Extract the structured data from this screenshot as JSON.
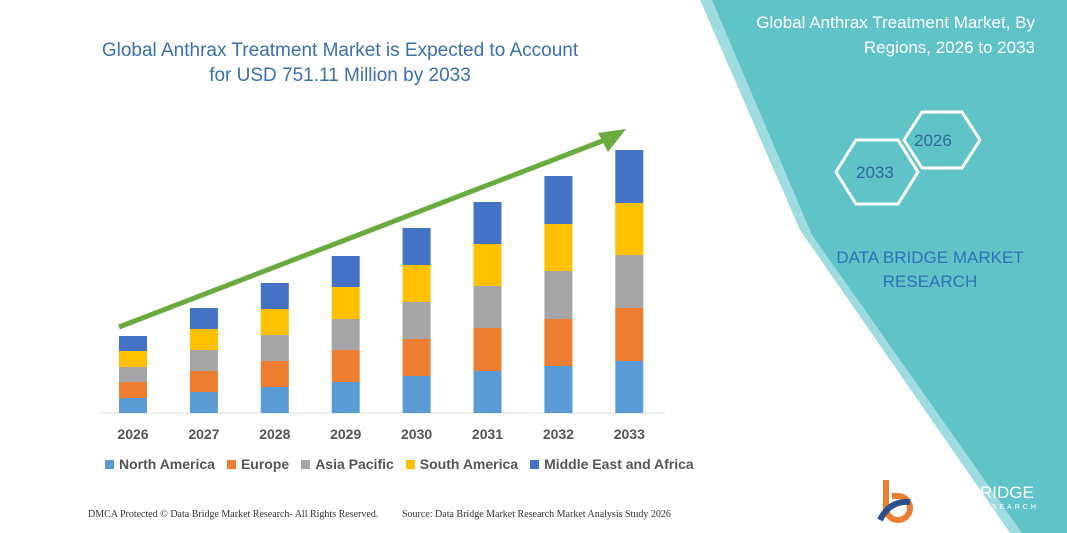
{
  "title": "Global Anthrax Treatment Market is Expected to Account for USD 751.11 Million by 2033",
  "right_panel": {
    "title": "Global Anthrax Treatment Market, By Regions, 2026 to 2033",
    "hex_1": "2026",
    "hex_2": "2033",
    "brand": "DATA BRIDGE MARKET RESEARCH",
    "logo_text": "DATA BRIDGE",
    "logo_sub": "MARKET RESEARCH"
  },
  "footer": {
    "dmca": "DMCA Protected © Data Bridge Market Research- All Rights Reserved.",
    "source": "Source: Data Bridge Market Research Market Analysis Study 2026"
  },
  "colors": {
    "teal": "#5fc3c8",
    "trend_arrow": "#6aab3f"
  },
  "chart_data": {
    "type": "bar",
    "stacked": true,
    "title": "",
    "xlabel": "",
    "ylabel": "",
    "grid": false,
    "legend_position": "bottom",
    "categories": [
      "2026",
      "2027",
      "2028",
      "2029",
      "2030",
      "2031",
      "2032",
      "2033"
    ],
    "series": [
      {
        "name": "North America",
        "color": "#5b9bd5",
        "values": [
          15,
          21,
          26,
          31,
          37,
          42,
          47,
          52
        ]
      },
      {
        "name": "Europe",
        "color": "#ed7d31",
        "values": [
          16,
          21,
          26,
          32,
          37,
          43,
          47,
          53
        ]
      },
      {
        "name": "Asia Pacific",
        "color": "#a5a5a5",
        "values": [
          15,
          21,
          26,
          31,
          37,
          42,
          48,
          53
        ]
      },
      {
        "name": "South America",
        "color": "#ffc000",
        "values": [
          16,
          21,
          26,
          32,
          37,
          42,
          47,
          52
        ]
      },
      {
        "name": "Middle East and Africa",
        "color": "#4472c4",
        "values": [
          15,
          21,
          26,
          31,
          37,
          42,
          48,
          53
        ]
      }
    ]
  }
}
